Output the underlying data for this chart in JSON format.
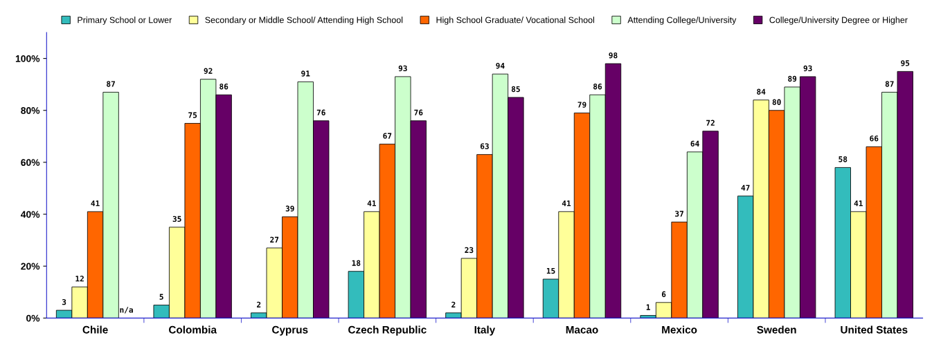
{
  "chart_data": {
    "type": "bar",
    "categories": [
      "Chile",
      "Colombia",
      "Cyprus",
      "Czech Republic",
      "Italy",
      "Macao",
      "Mexico",
      "Sweden",
      "United States"
    ],
    "series": [
      {
        "name": "Primary School or Lower",
        "color": "#33bcbc",
        "values": [
          3,
          5,
          2,
          18,
          2,
          15,
          1,
          47,
          58
        ],
        "value_labels": [
          "3",
          "5",
          "2",
          "18",
          "2",
          "15",
          "1",
          "47",
          "58"
        ]
      },
      {
        "name": "Secondary or Middle School/ Attending High School",
        "color": "#ffff99",
        "values": [
          12,
          35,
          27,
          41,
          23,
          41,
          6,
          84,
          41
        ],
        "value_labels": [
          "12",
          "35",
          "27",
          "41",
          "23",
          "41",
          "6",
          "84",
          "41"
        ]
      },
      {
        "name": "High School Graduate/ Vocational School",
        "color": "#ff6600",
        "values": [
          41,
          75,
          39,
          67,
          63,
          79,
          37,
          80,
          66
        ],
        "value_labels": [
          "41",
          "75",
          "39",
          "67",
          "63",
          "79",
          "37",
          "80",
          "66"
        ]
      },
      {
        "name": "Attending College/University",
        "color": "#ccffcc",
        "values": [
          87,
          92,
          91,
          93,
          94,
          86,
          64,
          89,
          87
        ],
        "value_labels": [
          "87",
          "92",
          "91",
          "93",
          "94",
          "86",
          "64",
          "89",
          "87"
        ]
      },
      {
        "name": "College/University Degree or Higher",
        "color": "#660066",
        "values": [
          null,
          86,
          76,
          76,
          85,
          98,
          72,
          93,
          95
        ],
        "value_labels": [
          "n/a",
          "86",
          "76",
          "76",
          "85",
          "98",
          "72",
          "93",
          "95"
        ]
      }
    ],
    "ylim": [
      0,
      110
    ],
    "yticks": [
      {
        "value": 0,
        "label": "0%"
      },
      {
        "value": 20,
        "label": "20%"
      },
      {
        "value": 40,
        "label": "40%"
      },
      {
        "value": 60,
        "label": "60%"
      },
      {
        "value": 80,
        "label": "80%"
      },
      {
        "value": 100,
        "label": "100%"
      }
    ],
    "grid": false,
    "legend": "top"
  }
}
